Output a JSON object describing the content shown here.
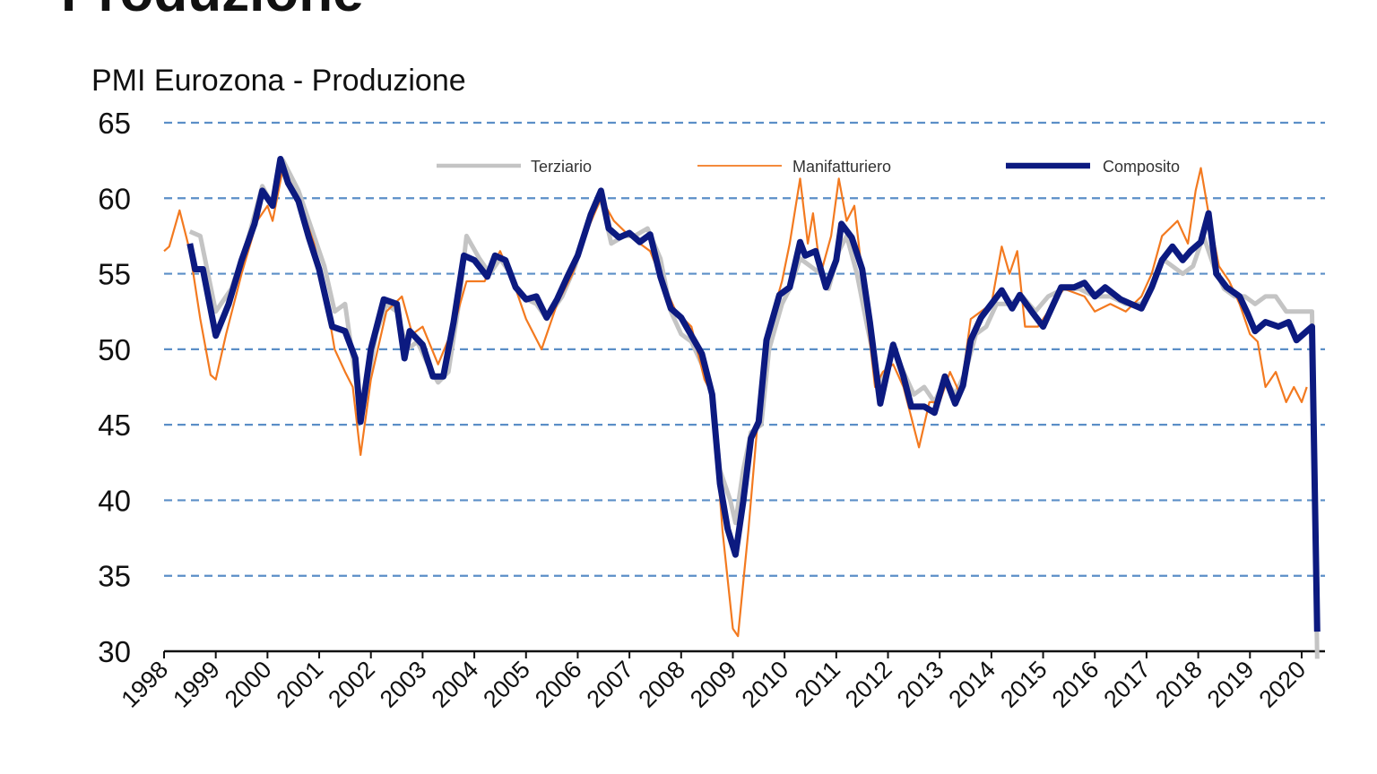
{
  "page_title": "Produzione",
  "chart_data": {
    "type": "line",
    "title": "PMI Eurozona - Produzione",
    "xlabel": "",
    "ylabel": "",
    "xlim": [
      1998,
      2020.4
    ],
    "ylim": [
      30,
      65
    ],
    "yticks": [
      30,
      35,
      40,
      45,
      50,
      55,
      60,
      65
    ],
    "xticks": [
      "1998",
      "1999",
      "2000",
      "2001",
      "2002",
      "2003",
      "2004",
      "2005",
      "2006",
      "2007",
      "2008",
      "2009",
      "2010",
      "2011",
      "2012",
      "2013",
      "2014",
      "2015",
      "2016",
      "2017",
      "2018",
      "2019",
      "2020"
    ],
    "grid": "horizontal dashed",
    "legend": "top",
    "series": [
      {
        "name": "Terziario",
        "color": "#c4c4c4",
        "x": [
          1998.5,
          1998.7,
          1999.0,
          1999.3,
          1999.6,
          1999.9,
          2000.1,
          2000.3,
          2000.6,
          2000.9,
          2001.1,
          2001.3,
          2001.5,
          2001.75,
          2001.85,
          2002.1,
          2002.3,
          2002.5,
          2002.7,
          2002.9,
          2003.1,
          2003.3,
          2003.5,
          2003.7,
          2003.85,
          2004.1,
          2004.3,
          2004.5,
          2004.7,
          2004.9,
          2005.2,
          2005.4,
          2005.7,
          2005.95,
          2006.2,
          2006.45,
          2006.65,
          2006.9,
          2007.1,
          2007.35,
          2007.6,
          2007.8,
          2008.0,
          2008.2,
          2008.4,
          2008.6,
          2008.75,
          2008.95,
          2009.05,
          2009.2,
          2009.35,
          2009.55,
          2009.7,
          2009.95,
          2010.1,
          2010.3,
          2010.5,
          2010.7,
          2010.85,
          2011.05,
          2011.2,
          2011.4,
          2011.6,
          2011.85,
          2012.1,
          2012.3,
          2012.5,
          2012.7,
          2012.9,
          2013.1,
          2013.3,
          2013.5,
          2013.7,
          2013.9,
          2014.1,
          2014.35,
          2014.6,
          2014.85,
          2015.1,
          2015.4,
          2015.7,
          2016.0,
          2016.3,
          2016.6,
          2016.9,
          2017.1,
          2017.3,
          2017.5,
          2017.7,
          2017.9,
          2018.1,
          2018.3,
          2018.5,
          2018.7,
          2018.9,
          2019.1,
          2019.3,
          2019.5,
          2019.7,
          2019.9,
          2020.1,
          2020.2,
          2020.3
        ],
        "y": [
          57.8,
          57.5,
          52.5,
          54.0,
          57.0,
          60.8,
          59.5,
          62.5,
          60.5,
          57.5,
          55.5,
          52.5,
          53.0,
          47.0,
          46.0,
          51.0,
          53.0,
          52.5,
          50.0,
          50.5,
          49.0,
          47.8,
          48.5,
          53.0,
          57.5,
          56.0,
          55.0,
          56.0,
          55.0,
          53.5,
          53.0,
          52.0,
          53.5,
          55.5,
          58.5,
          60.0,
          57.0,
          57.5,
          57.5,
          58.0,
          56.0,
          52.5,
          51.0,
          50.5,
          49.0,
          47.0,
          42.0,
          40.0,
          38.5,
          42.0,
          44.5,
          45.0,
          50.0,
          53.0,
          54.0,
          56.0,
          55.5,
          55.0,
          54.0,
          56.5,
          57.5,
          55.0,
          51.5,
          47.5,
          50.0,
          48.5,
          47.0,
          47.5,
          46.5,
          48.0,
          47.0,
          48.5,
          51.0,
          51.5,
          53.0,
          53.0,
          53.5,
          52.5,
          53.5,
          54.0,
          54.0,
          53.5,
          53.5,
          53.0,
          53.0,
          54.0,
          56.0,
          55.5,
          55.0,
          55.5,
          57.5,
          55.5,
          54.0,
          53.5,
          53.5,
          53.0,
          53.5,
          53.5,
          52.5,
          52.5,
          52.5,
          52.5,
          29.5
        ]
      },
      {
        "name": "Manifatturiero",
        "color": "#f37a20",
        "x": [
          1998.0,
          1998.1,
          1998.3,
          1998.5,
          1998.7,
          1998.9,
          1999.0,
          1999.2,
          1999.5,
          1999.8,
          2000.0,
          2000.1,
          2000.3,
          2000.6,
          2000.9,
          2001.1,
          2001.3,
          2001.5,
          2001.65,
          2001.8,
          2002.0,
          2002.3,
          2002.6,
          2002.8,
          2003.0,
          2003.3,
          2003.6,
          2003.85,
          2004.2,
          2004.5,
          2004.8,
          2005.0,
          2005.3,
          2005.6,
          2005.9,
          2006.2,
          2006.45,
          2006.7,
          2007.0,
          2007.4,
          2007.7,
          2007.9,
          2008.2,
          2008.45,
          2008.6,
          2008.8,
          2009.0,
          2009.1,
          2009.3,
          2009.5,
          2009.7,
          2009.95,
          2010.1,
          2010.3,
          2010.45,
          2010.55,
          2010.7,
          2010.9,
          2011.05,
          2011.2,
          2011.35,
          2011.6,
          2011.75,
          2011.9,
          2012.1,
          2012.3,
          2012.45,
          2012.6,
          2012.8,
          2013.0,
          2013.2,
          2013.4,
          2013.6,
          2013.8,
          2014.0,
          2014.2,
          2014.35,
          2014.5,
          2014.65,
          2014.9,
          2015.1,
          2015.4,
          2015.8,
          2016.0,
          2016.3,
          2016.6,
          2016.9,
          2017.1,
          2017.3,
          2017.6,
          2017.8,
          2017.95,
          2018.05,
          2018.2,
          2018.4,
          2018.6,
          2018.8,
          2019.0,
          2019.15,
          2019.3,
          2019.5,
          2019.7,
          2019.85,
          2020.0,
          2020.1
        ],
        "y": [
          56.5,
          56.8,
          59.2,
          56.5,
          52.0,
          48.3,
          48.0,
          51.0,
          55.0,
          58.5,
          59.5,
          58.5,
          62.0,
          60.0,
          57.0,
          54.0,
          50.0,
          48.5,
          47.5,
          43.0,
          48.0,
          52.5,
          53.5,
          51.0,
          51.5,
          49.0,
          51.5,
          54.5,
          54.5,
          56.5,
          54.0,
          52.0,
          50.0,
          53.0,
          55.0,
          58.0,
          60.0,
          58.5,
          57.5,
          56.5,
          54.0,
          52.5,
          51.5,
          48.0,
          47.0,
          38.0,
          31.5,
          31.0,
          38.0,
          46.0,
          51.5,
          54.5,
          57.0,
          61.3,
          57.0,
          59.0,
          55.0,
          57.5,
          61.3,
          58.5,
          59.5,
          52.0,
          47.5,
          48.5,
          49.0,
          47.5,
          45.5,
          43.5,
          46.5,
          46.5,
          48.5,
          47.0,
          52.0,
          52.5,
          53.0,
          56.8,
          55.0,
          56.5,
          51.5,
          51.5,
          52.5,
          54.0,
          53.5,
          52.5,
          53.0,
          52.5,
          53.5,
          55.0,
          57.5,
          58.5,
          57.0,
          60.5,
          62.0,
          59.0,
          55.5,
          54.5,
          53.0,
          51.0,
          50.5,
          47.5,
          48.5,
          46.5,
          47.5,
          46.5,
          47.5
        ]
      },
      {
        "name": "Composito",
        "color": "#0c1a80",
        "x": [
          1998.5,
          1998.6,
          1998.75,
          1999.0,
          1999.25,
          1999.5,
          1999.75,
          1999.9,
          2000.1,
          2000.25,
          2000.4,
          2000.6,
          2000.8,
          2001.0,
          2001.25,
          2001.5,
          2001.7,
          2001.8,
          2002.0,
          2002.25,
          2002.5,
          2002.65,
          2002.75,
          2003.0,
          2003.2,
          2003.4,
          2003.6,
          2003.8,
          2004.0,
          2004.25,
          2004.4,
          2004.6,
          2004.8,
          2005.0,
          2005.2,
          2005.4,
          2005.6,
          2005.8,
          2006.0,
          2006.25,
          2006.45,
          2006.6,
          2006.8,
          2007.0,
          2007.2,
          2007.4,
          2007.6,
          2007.8,
          2008.0,
          2008.2,
          2008.4,
          2008.6,
          2008.75,
          2008.9,
          2009.05,
          2009.2,
          2009.35,
          2009.5,
          2009.65,
          2009.9,
          2010.1,
          2010.3,
          2010.4,
          2010.6,
          2010.8,
          2011.0,
          2011.1,
          2011.3,
          2011.5,
          2011.65,
          2011.85,
          2012.1,
          2012.3,
          2012.45,
          2012.7,
          2012.9,
          2013.1,
          2013.3,
          2013.45,
          2013.6,
          2013.8,
          2014.0,
          2014.2,
          2014.4,
          2014.55,
          2014.8,
          2015.0,
          2015.2,
          2015.35,
          2015.6,
          2015.8,
          2016.0,
          2016.2,
          2016.5,
          2016.7,
          2016.9,
          2017.1,
          2017.3,
          2017.5,
          2017.7,
          2017.85,
          2018.05,
          2018.2,
          2018.35,
          2018.55,
          2018.8,
          2018.95,
          2019.1,
          2019.3,
          2019.55,
          2019.75,
          2019.9,
          2020.1,
          2020.2,
          2020.3
        ],
        "y": [
          57.0,
          55.3,
          55.3,
          50.9,
          53.0,
          55.9,
          58.3,
          60.5,
          59.5,
          62.6,
          61.0,
          59.8,
          57.4,
          55.3,
          51.5,
          51.2,
          49.4,
          45.2,
          50.0,
          53.3,
          53.0,
          49.4,
          51.2,
          50.3,
          48.2,
          48.2,
          51.8,
          56.2,
          55.9,
          54.8,
          56.2,
          55.9,
          54.1,
          53.3,
          53.5,
          52.1,
          53.3,
          54.8,
          56.2,
          58.9,
          60.5,
          58.0,
          57.4,
          57.7,
          57.1,
          57.6,
          54.8,
          52.7,
          52.1,
          50.9,
          49.7,
          47.0,
          41.1,
          38.1,
          36.4,
          39.9,
          44.1,
          45.2,
          50.6,
          53.6,
          54.1,
          57.1,
          56.2,
          56.5,
          54.1,
          55.9,
          58.3,
          57.4,
          55.3,
          51.8,
          46.4,
          50.3,
          48.2,
          46.2,
          46.2,
          45.8,
          48.2,
          46.4,
          47.6,
          50.6,
          52.1,
          53.0,
          53.9,
          52.7,
          53.6,
          52.4,
          51.5,
          53.0,
          54.1,
          54.1,
          54.4,
          53.5,
          54.1,
          53.3,
          53.0,
          52.7,
          54.1,
          55.9,
          56.8,
          55.9,
          56.5,
          57.1,
          59.0,
          55.0,
          54.1,
          53.5,
          52.4,
          51.2,
          51.8,
          51.5,
          51.8,
          50.6,
          51.2,
          51.5,
          31.3
        ]
      }
    ]
  }
}
